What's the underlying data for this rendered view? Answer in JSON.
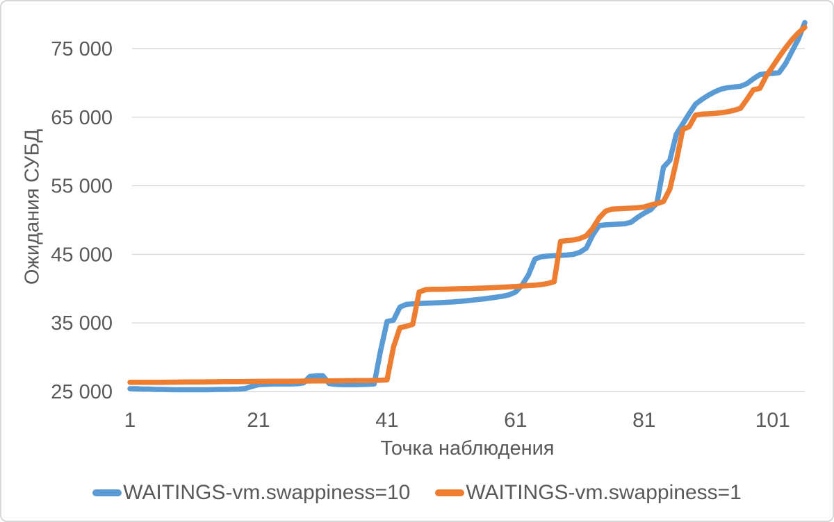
{
  "chart_data": {
    "type": "line",
    "title": "",
    "xlabel": "Точка наблюдения",
    "ylabel": "Ожидания СУБД",
    "xlim": [
      1,
      106
    ],
    "ylim": [
      25000,
      80000
    ],
    "grid": "horizontal-major",
    "legend_position": "bottom",
    "background_color": "#FFFFFF",
    "gridline_color": "#D9D9D9",
    "text_color": "#595959",
    "x_ticks": [
      1,
      21,
      41,
      61,
      81,
      101
    ],
    "y_ticks": [
      {
        "value": 25000,
        "label": "25 000"
      },
      {
        "value": 35000,
        "label": "35 000"
      },
      {
        "value": 45000,
        "label": "45 000"
      },
      {
        "value": 55000,
        "label": "55 000"
      },
      {
        "value": 65000,
        "label": "65 000"
      },
      {
        "value": 75000,
        "label": "75 000"
      }
    ],
    "x_description": "Observation point index, 1..106",
    "series": [
      {
        "name": "WAITINGS-vm.swappiness=10",
        "color": "#5B9BD5",
        "values": [
          25400,
          25400,
          25350,
          25350,
          25300,
          25300,
          25280,
          25250,
          25250,
          25250,
          25250,
          25250,
          25250,
          25280,
          25300,
          25300,
          25320,
          25350,
          25450,
          25750,
          26000,
          26050,
          26080,
          26100,
          26100,
          26100,
          26120,
          26250,
          27200,
          27300,
          27300,
          26150,
          26050,
          26000,
          26000,
          26000,
          26020,
          26050,
          26100,
          31000,
          35200,
          35400,
          37300,
          37700,
          37780,
          37820,
          37860,
          37900,
          37950,
          38000,
          38050,
          38120,
          38200,
          38300,
          38400,
          38500,
          38620,
          38750,
          38900,
          39100,
          39500,
          40500,
          42000,
          44300,
          44650,
          44750,
          44800,
          44850,
          44900,
          45000,
          45300,
          45900,
          47800,
          49200,
          49300,
          49350,
          49400,
          49450,
          49700,
          50400,
          51000,
          51500,
          52500,
          57700,
          58700,
          62500,
          64000,
          65500,
          66900,
          67600,
          68200,
          68700,
          69100,
          69300,
          69400,
          69500,
          69900,
          70600,
          71200,
          71350,
          71400,
          71500,
          72800,
          74600,
          76400,
          78800
        ]
      },
      {
        "name": "WAITINGS-vm.swappiness=1",
        "color": "#ED7D31",
        "values": [
          26350,
          26350,
          26350,
          26350,
          26350,
          26350,
          26360,
          26370,
          26380,
          26390,
          26400,
          26400,
          26410,
          26420,
          26430,
          26440,
          26450,
          26450,
          26460,
          26470,
          26480,
          26480,
          26490,
          26500,
          26500,
          26500,
          26510,
          26520,
          26530,
          26540,
          26550,
          26550,
          26560,
          26570,
          26580,
          26590,
          26600,
          26600,
          26620,
          26650,
          26700,
          31500,
          34300,
          34500,
          34800,
          39500,
          39850,
          39900,
          39900,
          39920,
          39950,
          39980,
          40000,
          40020,
          40050,
          40080,
          40120,
          40160,
          40200,
          40250,
          40300,
          40380,
          40450,
          40500,
          40600,
          40750,
          41000,
          46900,
          47000,
          47100,
          47300,
          47700,
          48800,
          50300,
          51300,
          51600,
          51650,
          51700,
          51750,
          51800,
          51900,
          52200,
          52400,
          52700,
          54500,
          58500,
          63200,
          63600,
          65300,
          65450,
          65500,
          65550,
          65650,
          65800,
          66000,
          66300,
          67600,
          69000,
          69200,
          71000,
          72400,
          73800,
          75100,
          76300,
          77300,
          78100
        ]
      }
    ]
  }
}
